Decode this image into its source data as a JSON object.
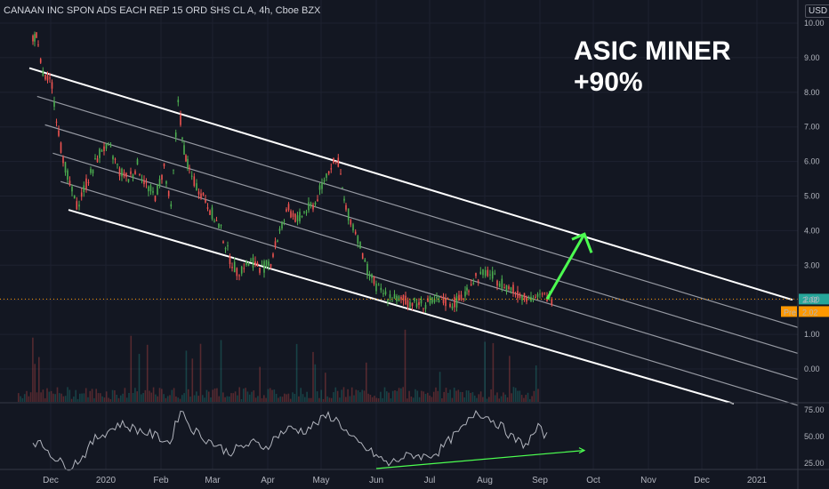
{
  "header": {
    "title": "CANAAN INC SPON ADS EACH REP 15 ORD SHS CL A, 4h, Cboe BZX",
    "currency_label": "USD"
  },
  "annotation": {
    "line1": "ASIC MINER",
    "line2": "+90%"
  },
  "price_labels": {
    "last": "2.02",
    "pre_tag": "Pre",
    "pre_value": "2.02"
  },
  "colors": {
    "background": "#131722",
    "up": "#4caf50",
    "down": "#ef5350",
    "channel": "#ffffff",
    "rsi_line": "#b2b5be",
    "arrow": "#4cff50",
    "price_line": "#ff9800"
  },
  "chart_data": [
    {
      "type": "candlestick",
      "title": "CANAAN INC SPON ADS EACH REP 15 ORD SHS CL A, 4h, Cboe BZX",
      "y_ticks": [
        "10.00",
        "9.00",
        "8.00",
        "7.00",
        "6.00",
        "5.00",
        "4.00",
        "3.00",
        "2.00",
        "1.00",
        "0.00"
      ],
      "x_ticks": [
        "Dec",
        "2020",
        "Feb",
        "Mar",
        "Apr",
        "May",
        "Jun",
        "Jul",
        "Aug",
        "Sep",
        "Oct",
        "Nov",
        "Dec",
        "2021"
      ],
      "ylim": [
        -1,
        10.3
      ],
      "last_price": 2.02,
      "series": [
        {
          "x": [
            "2019-11-21",
            "2019-11-24",
            "2019-11-28",
            "2019-12-03",
            "2019-12-08",
            "2019-12-13",
            "2019-12-17",
            "2019-12-21",
            "2019-12-26",
            "2019-12-31",
            "2020-01-05",
            "2020-01-10",
            "2020-01-15",
            "2020-01-20",
            "2020-01-25",
            "2020-01-30",
            "2020-02-04",
            "2020-02-08",
            "2020-02-12",
            "2020-02-14",
            "2020-02-17",
            "2020-02-21",
            "2020-02-26",
            "2020-03-02",
            "2020-03-07",
            "2020-03-12",
            "2020-03-16",
            "2020-03-20",
            "2020-03-25",
            "2020-03-30",
            "2020-04-04",
            "2020-04-09",
            "2020-04-14",
            "2020-04-19",
            "2020-04-24",
            "2020-04-29",
            "2020-05-04",
            "2020-05-08",
            "2020-05-12",
            "2020-05-15",
            "2020-05-19",
            "2020-05-23",
            "2020-05-27",
            "2020-06-01",
            "2020-06-05",
            "2020-06-10",
            "2020-06-15",
            "2020-06-20",
            "2020-06-25",
            "2020-06-30",
            "2020-07-05",
            "2020-07-10",
            "2020-07-15",
            "2020-07-20",
            "2020-07-23",
            "2020-07-27",
            "2020-07-31",
            "2020-08-04",
            "2020-08-08",
            "2020-08-12",
            "2020-08-17",
            "2020-08-22",
            "2020-08-27",
            "2020-09-01",
            "2020-09-05"
          ],
          "close": [
            9.6,
            8.5,
            8.2,
            6.4,
            5.3,
            4.7,
            5.2,
            5.8,
            6.4,
            6.3,
            5.7,
            5.5,
            5.9,
            5.3,
            5.0,
            5.8,
            4.6,
            7.8,
            6.6,
            5.9,
            5.4,
            5.0,
            4.5,
            4.0,
            3.2,
            2.8,
            3.0,
            3.1,
            2.9,
            3.1,
            4.0,
            4.6,
            4.3,
            4.6,
            4.8,
            5.5,
            5.9,
            6.0,
            4.8,
            4.3,
            3.8,
            3.0,
            2.5,
            2.2,
            2.1,
            2.0,
            1.95,
            1.9,
            1.9,
            1.95,
            1.95,
            1.9,
            2.0,
            2.3,
            2.6,
            2.7,
            2.8,
            2.6,
            2.5,
            2.3,
            2.15,
            2.1,
            2.05,
            2.1,
            2.02
          ]
        }
      ],
      "channel": {
        "upper": [
          [
            "2019-11-19",
            8.7
          ],
          [
            "2021-01-21",
            2.0
          ]
        ],
        "lower": [
          [
            "2019-12-11",
            4.6
          ],
          [
            "2020-12-19",
            -1.0
          ]
        ],
        "inner_lines": 4
      },
      "annotation": {
        "text": "ASIC MINER +90%",
        "arrow_from": [
          "2020-09-05",
          2.02
        ],
        "arrow_to": [
          "2020-09-26",
          3.9
        ]
      }
    },
    {
      "type": "line",
      "name_hint": "rsi",
      "y_ticks": [
        "75.00",
        "50.00",
        "25.00"
      ],
      "ylim": [
        10,
        80
      ],
      "series": [
        {
          "x": [
            "2019-11-21",
            "2019-11-28",
            "2019-12-05",
            "2019-12-12",
            "2019-12-19",
            "2019-12-26",
            "2020-01-02",
            "2020-01-09",
            "2020-01-16",
            "2020-01-23",
            "2020-01-30",
            "2020-02-06",
            "2020-02-12",
            "2020-02-18",
            "2020-02-25",
            "2020-03-03",
            "2020-03-10",
            "2020-03-17",
            "2020-03-24",
            "2020-03-31",
            "2020-04-07",
            "2020-04-14",
            "2020-04-21",
            "2020-04-28",
            "2020-05-05",
            "2020-05-11",
            "2020-05-18",
            "2020-05-25",
            "2020-06-01",
            "2020-06-08",
            "2020-06-15",
            "2020-06-22",
            "2020-06-29",
            "2020-07-06",
            "2020-07-13",
            "2020-07-20",
            "2020-07-27",
            "2020-08-03",
            "2020-08-10",
            "2020-08-17",
            "2020-08-24",
            "2020-08-31",
            "2020-09-05"
          ],
          "values": [
            46,
            40,
            27,
            22,
            31,
            48,
            55,
            62,
            58,
            54,
            50,
            44,
            76,
            58,
            49,
            42,
            35,
            40,
            44,
            40,
            52,
            58,
            55,
            62,
            70,
            64,
            48,
            40,
            32,
            24,
            30,
            33,
            31,
            36,
            48,
            58,
            74,
            68,
            60,
            48,
            42,
            58,
            50
          ]
        }
      ],
      "divergence": [
        [
          "2020-06-01",
          20
        ],
        [
          "2020-09-26",
          37
        ]
      ]
    }
  ]
}
